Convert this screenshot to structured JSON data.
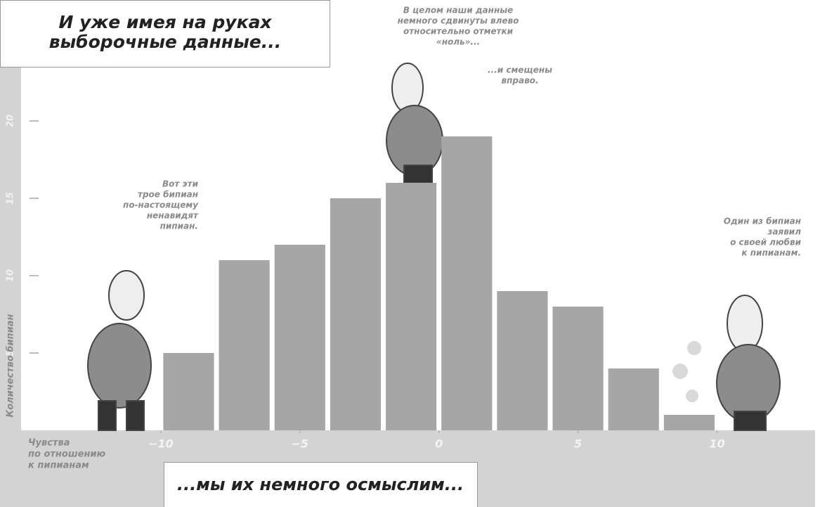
{
  "chart_data": {
    "type": "histogram",
    "title": [
      "И уже имея на руках",
      "выборочные данные..."
    ],
    "subtitle": "...мы их немного осмыслим...",
    "ylabel": "Количество бипиан",
    "xlabel": [
      "Чувства",
      "по отношению",
      "к пипианам"
    ],
    "bins": [
      -10,
      -8,
      -6,
      -4,
      -2,
      0,
      2,
      4,
      6,
      8,
      10
    ],
    "values": [
      5,
      11,
      12,
      15,
      16,
      19,
      9,
      8,
      4,
      1
    ],
    "color": "#a6a6a6",
    "xlim": [
      -15,
      13.5
    ],
    "ylim": [
      0,
      23
    ],
    "xticks": [
      {
        "value": -10,
        "label": "−10"
      },
      {
        "value": -5,
        "label": "−5"
      },
      0,
      5,
      10
    ],
    "yticks": [
      5,
      10,
      15,
      20
    ],
    "annotations": [
      {
        "lines": [
          "В целом наши данные",
          "немного сдвинуты влево",
          "относительно отметки",
          "«ноль»..."
        ]
      },
      {
        "lines": [
          "...и смещены",
          "вправо."
        ]
      },
      {
        "lines": [
          "Вот эти",
          "трое бипиан",
          "по-настоящему",
          "ненавидят",
          "пипиан."
        ]
      },
      {
        "lines": [
          "Один из бипиан",
          "заявил",
          "о своей любви",
          "к пипианам."
        ]
      }
    ]
  }
}
